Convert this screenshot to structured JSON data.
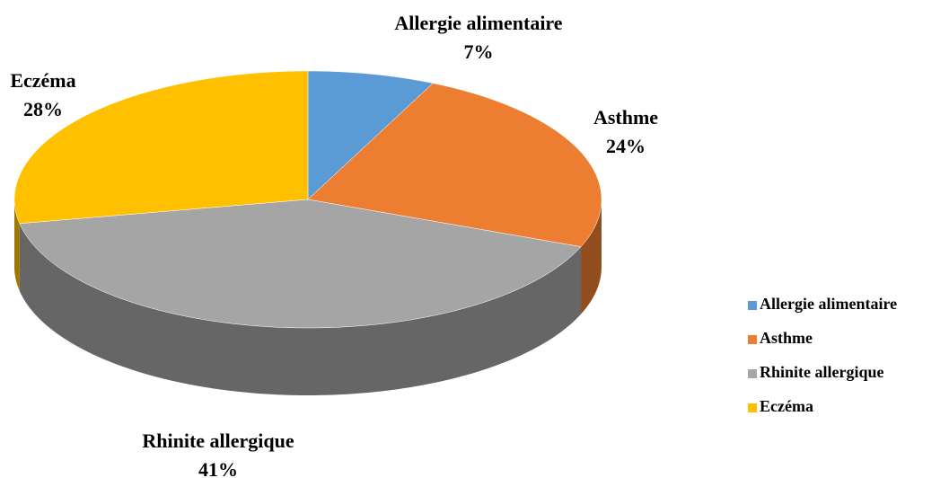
{
  "chart_data": {
    "type": "pie",
    "categories": [
      "Allergie alimentaire",
      "Asthme",
      "Rhinite allergique",
      "Eczéma"
    ],
    "values": [
      7,
      24,
      41,
      28
    ],
    "value_labels": [
      "7%",
      "24%",
      "41%",
      "28%"
    ],
    "colors": [
      "#5b9bd5",
      "#ed7d31",
      "#a5a5a5",
      "#ffc000"
    ],
    "legend": "right"
  }
}
